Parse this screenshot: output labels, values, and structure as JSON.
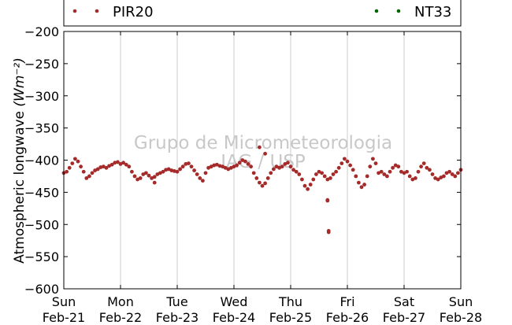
{
  "chart_data": {
    "type": "scatter",
    "ylabel": "Atmospheric longwave ",
    "ylabel_units": "(Wm⁻²)",
    "ylim": [
      -600,
      -200
    ],
    "yticks": [
      -200,
      -250,
      -300,
      -350,
      -400,
      -450,
      -500,
      -550,
      -600
    ],
    "xlim": [
      "2015-02-21",
      "2015-02-28"
    ],
    "xtick_days": [
      "Sun",
      "Mon",
      "Tue",
      "Wed",
      "Thu",
      "Fri",
      "Sat",
      "Sun"
    ],
    "xtick_dates": [
      "Feb-21",
      "Feb-22",
      "Feb-23",
      "Feb-24",
      "Feb-25",
      "Feb-26",
      "Feb-27",
      "Feb-28"
    ],
    "grid": "vertical",
    "legend_position": "top",
    "watermark": [
      "Grupo de Micrometeorologia",
      "IAG / USP"
    ],
    "series": [
      {
        "name": "PIR20",
        "color": "#a52a2a",
        "x_days": [
          0.0,
          0.05,
          0.1,
          0.15,
          0.2,
          0.25,
          0.3,
          0.35,
          0.4,
          0.45,
          0.5,
          0.55,
          0.6,
          0.65,
          0.7,
          0.75,
          0.8,
          0.85,
          0.9,
          0.95,
          1.0,
          1.05,
          1.1,
          1.15,
          1.2,
          1.25,
          1.3,
          1.35,
          1.4,
          1.45,
          1.5,
          1.55,
          1.6,
          1.65,
          1.7,
          1.75,
          1.8,
          1.85,
          1.9,
          1.95,
          2.0,
          2.05,
          2.1,
          2.15,
          2.2,
          2.25,
          2.3,
          2.35,
          2.4,
          2.45,
          2.5,
          2.55,
          2.6,
          2.65,
          2.7,
          2.75,
          2.8,
          2.85,
          2.9,
          2.95,
          3.0,
          3.05,
          3.1,
          3.15,
          3.2,
          3.25,
          3.3,
          3.35,
          3.4,
          3.45,
          3.5,
          3.55,
          3.6,
          3.65,
          3.7,
          3.75,
          3.8,
          3.85,
          3.9,
          3.95,
          4.0,
          4.05,
          4.1,
          4.15,
          4.2,
          4.25,
          4.3,
          4.35,
          4.4,
          4.45,
          4.5,
          4.55,
          4.6,
          4.65,
          4.7,
          4.75,
          4.8,
          4.85,
          4.9,
          4.95,
          5.0,
          5.05,
          5.1,
          5.15,
          5.2,
          5.25,
          5.3,
          5.35,
          5.4,
          5.45,
          5.5,
          5.55,
          5.6,
          5.65,
          5.7,
          5.75,
          5.8,
          5.85,
          5.9,
          5.95,
          6.0,
          6.05,
          6.1,
          6.15,
          6.2,
          6.25,
          6.3,
          6.35,
          6.4,
          6.45,
          6.5,
          6.55,
          6.6,
          6.65,
          6.7,
          6.75,
          6.8,
          6.85,
          6.9,
          6.95,
          7.0,
          1.6,
          3.45,
          3.55,
          4.65,
          4.67,
          4.65,
          4.67
        ],
        "values": [
          -420,
          -418,
          -412,
          -405,
          -398,
          -402,
          -410,
          -418,
          -428,
          -425,
          -420,
          -416,
          -414,
          -411,
          -410,
          -412,
          -409,
          -407,
          -404,
          -403,
          -406,
          -404,
          -407,
          -410,
          -418,
          -425,
          -430,
          -428,
          -422,
          -420,
          -424,
          -428,
          -426,
          -422,
          -420,
          -418,
          -415,
          -414,
          -416,
          -417,
          -418,
          -414,
          -410,
          -406,
          -405,
          -410,
          -416,
          -422,
          -428,
          -432,
          -420,
          -412,
          -410,
          -408,
          -407,
          -409,
          -410,
          -412,
          -414,
          -412,
          -410,
          -408,
          -404,
          -400,
          -402,
          -406,
          -410,
          -420,
          -428,
          -435,
          -440,
          -436,
          -428,
          -420,
          -414,
          -410,
          -412,
          -410,
          -406,
          -404,
          -410,
          -415,
          -418,
          -422,
          -430,
          -440,
          -445,
          -438,
          -430,
          -422,
          -418,
          -420,
          -425,
          -430,
          -428,
          -422,
          -418,
          -412,
          -405,
          -398,
          -402,
          -408,
          -415,
          -425,
          -435,
          -442,
          -438,
          -425,
          -410,
          -398,
          -405,
          -420,
          -418,
          -422,
          -425,
          -418,
          -412,
          -408,
          -410,
          -418,
          -420,
          -418,
          -425,
          -430,
          -428,
          -418,
          -410,
          -405,
          -412,
          -415,
          -422,
          -428,
          -430,
          -427,
          -425,
          -420,
          -418,
          -422,
          -425,
          -420,
          -415,
          -435,
          -380,
          -390,
          -462,
          -510,
          -463,
          -512
        ]
      },
      {
        "name": "NT33",
        "color": "#006400",
        "x_days": [],
        "values": []
      }
    ]
  }
}
